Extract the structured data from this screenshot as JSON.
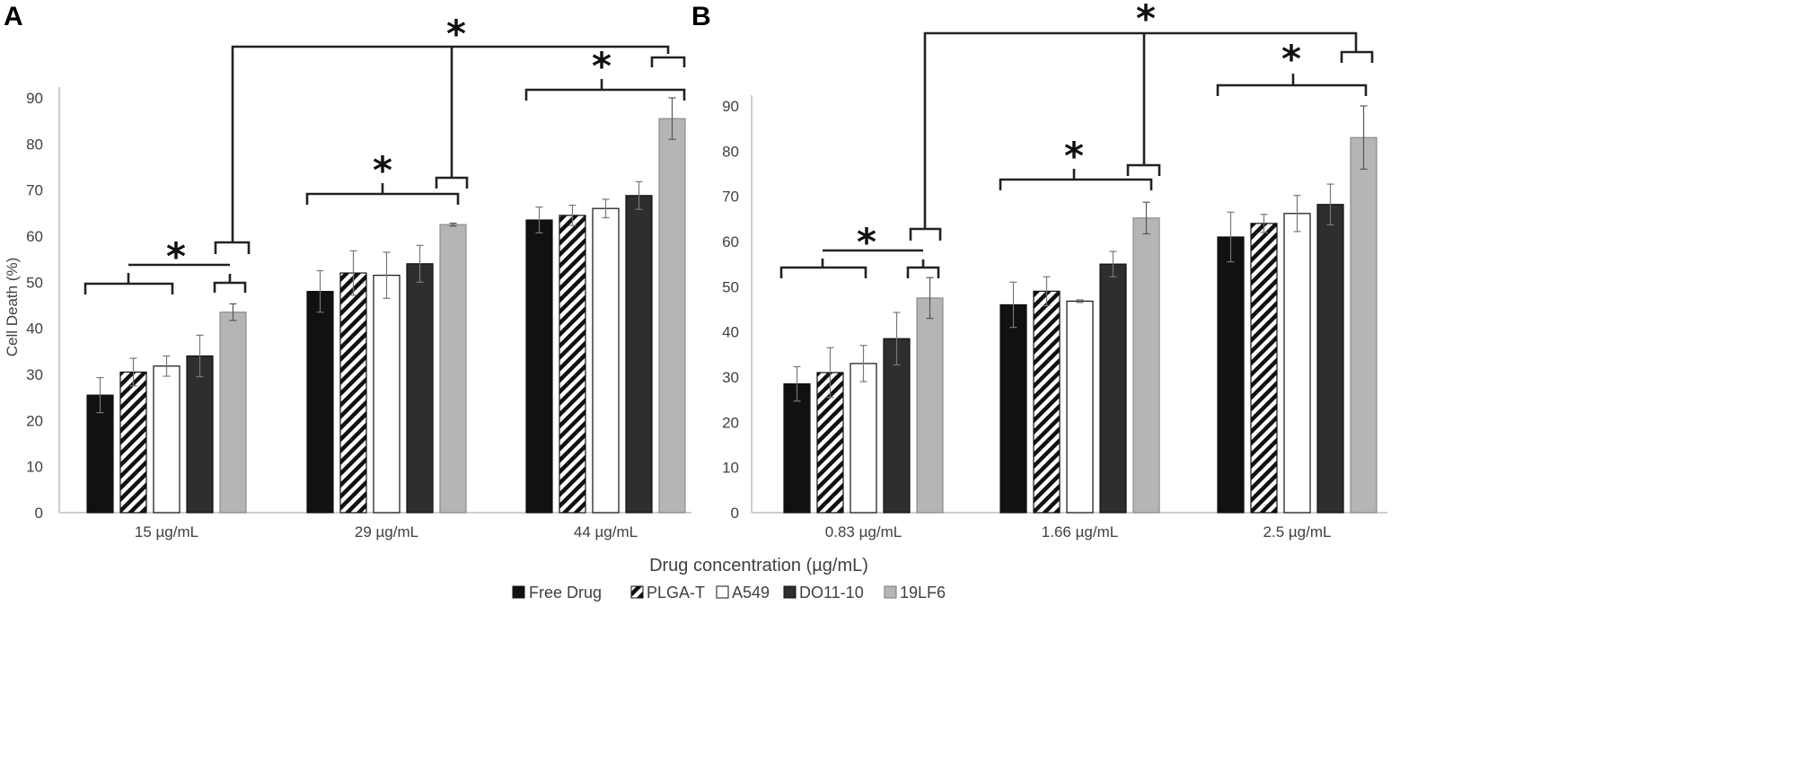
{
  "chart_data": [
    {
      "panel": "A",
      "type": "bar",
      "ylabel": "Cell Death (%)",
      "xlabel": "",
      "ylim": [
        0,
        90
      ],
      "yticks": [
        0,
        10,
        20,
        30,
        40,
        50,
        60,
        70,
        80,
        90
      ],
      "categories": [
        "15 µg/mL",
        "29 µg/mL",
        "44 µg/mL"
      ],
      "series": [
        {
          "name": "Free Drug",
          "values": [
            25.5,
            48.0,
            63.5
          ],
          "errors": [
            3.8,
            4.5,
            2.8
          ]
        },
        {
          "name": "PLGA-T",
          "values": [
            30.5,
            52.0,
            64.5
          ],
          "errors": [
            3.0,
            4.8,
            2.2
          ]
        },
        {
          "name": "A549",
          "values": [
            31.8,
            51.5,
            66.0
          ],
          "errors": [
            2.2,
            5.0,
            2.0
          ]
        },
        {
          "name": "DO11-10",
          "values": [
            34.0,
            54.0,
            68.8
          ],
          "errors": [
            4.5,
            4.0,
            3.0
          ]
        },
        {
          "name": "19LF6",
          "values": [
            43.5,
            62.5,
            85.5
          ],
          "errors": [
            1.8,
            0.3,
            4.5
          ]
        }
      ],
      "annotations": [
        "*",
        "*",
        "*",
        "*"
      ]
    },
    {
      "panel": "B",
      "type": "bar",
      "ylabel": "",
      "xlabel": "",
      "ylim": [
        0,
        90
      ],
      "yticks": [
        0,
        10,
        20,
        30,
        40,
        50,
        60,
        70,
        80,
        90
      ],
      "categories": [
        "0.83 µg/mL",
        "1.66 µg/mL",
        "2.5 µg/mL"
      ],
      "series": [
        {
          "name": "Free Drug",
          "values": [
            28.5,
            46.0,
            61.0
          ],
          "errors": [
            3.8,
            5.0,
            5.5
          ]
        },
        {
          "name": "PLGA-T",
          "values": [
            31.0,
            49.0,
            64.0
          ],
          "errors": [
            5.5,
            3.2,
            2.0
          ]
        },
        {
          "name": "A549",
          "values": [
            33.0,
            46.8,
            66.2
          ],
          "errors": [
            4.0,
            0.3,
            4.0
          ]
        },
        {
          "name": "DO11-10",
          "values": [
            38.5,
            55.0,
            68.2
          ],
          "errors": [
            5.8,
            2.8,
            4.5
          ]
        },
        {
          "name": "19LF6",
          "values": [
            47.5,
            65.2,
            83.0
          ],
          "errors": [
            4.5,
            3.5,
            7.0
          ]
        }
      ],
      "annotations": [
        "*",
        "*",
        "*",
        "*"
      ]
    }
  ],
  "shared_xlabel": "Drug concentration (µg/mL)",
  "legend": {
    "placement": "bottom-center",
    "items": [
      {
        "label": "Free Drug",
        "style": "solid-black",
        "color": "#111111"
      },
      {
        "label": "PLGA-T",
        "style": "hatched",
        "color": "#111111"
      },
      {
        "label": "A549",
        "style": "white",
        "color": "#ffffff"
      },
      {
        "label": "DO11-10",
        "style": "dark-gray",
        "color": "#2e2e2e"
      },
      {
        "label": "19LF6",
        "style": "light-gray",
        "color": "#b5b5b5"
      }
    ]
  },
  "significance_symbol": "*"
}
